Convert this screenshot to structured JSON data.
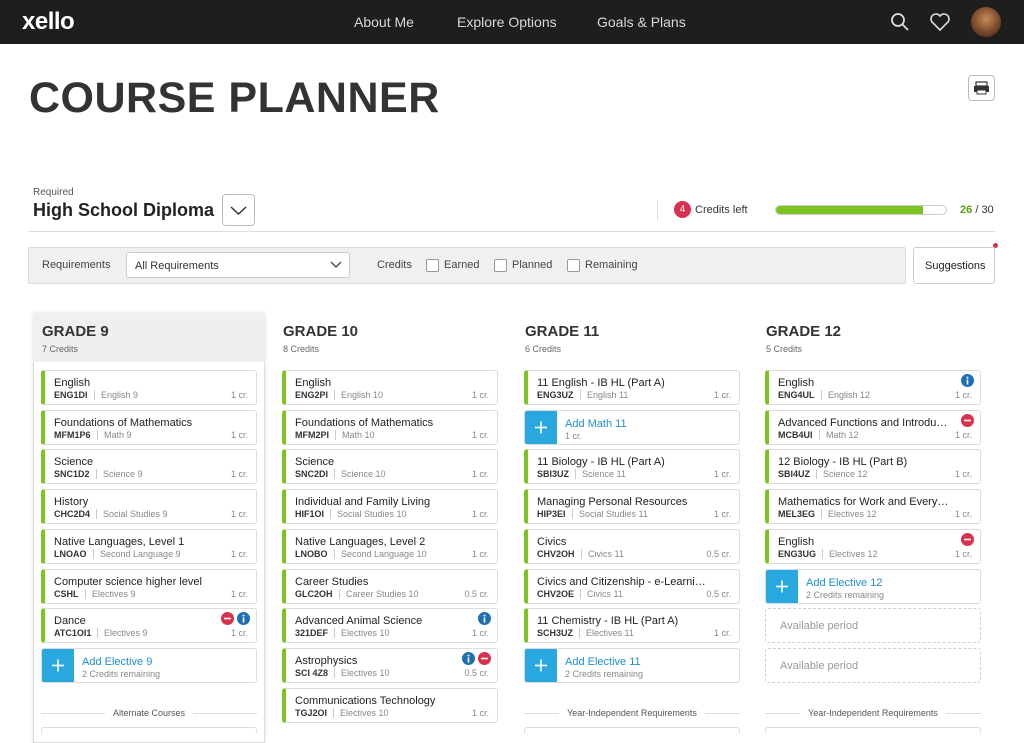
{
  "nav": {
    "logo": "xello",
    "links": [
      "About Me",
      "Explore Options",
      "Goals & Plans"
    ]
  },
  "header": {
    "title": "COURSE PLANNER"
  },
  "diploma": {
    "label": "Required",
    "name": "High School Diploma",
    "credits_left": 4,
    "credits_left_label": "Credits left",
    "progress": {
      "earned": 26,
      "separator": "/",
      "total": 30
    }
  },
  "filters": {
    "requirements_label": "Requirements",
    "requirements_value": "All Requirements",
    "credits_label": "Credits",
    "checkboxes": [
      "Earned",
      "Planned",
      "Remaining"
    ],
    "suggestions": "Suggestions"
  },
  "grades": [
    {
      "title": "GRADE 9",
      "credits": "7 Credits",
      "selected": true,
      "footer": "Alternate Courses",
      "items": [
        {
          "kind": "course",
          "name": "English",
          "code": "ENG1DI",
          "subject": "English 9",
          "credits": "1 cr."
        },
        {
          "kind": "course",
          "name": "Foundations of Mathematics",
          "code": "MFM1P6",
          "subject": "Math 9",
          "credits": "1 cr."
        },
        {
          "kind": "course",
          "name": "Science",
          "code": "SNC1D2",
          "subject": "Science 9",
          "credits": "1 cr."
        },
        {
          "kind": "course",
          "name": "History",
          "code": "CHC2D4",
          "subject": "Social Studies 9",
          "credits": "1 cr."
        },
        {
          "kind": "course",
          "name": "Native Languages, Level 1",
          "code": "LNOAO",
          "subject": "Second Language 9",
          "credits": "1 cr."
        },
        {
          "kind": "course",
          "name": "Computer science higher level",
          "code": "CSHL",
          "subject": "Electives 9",
          "credits": "1 cr."
        },
        {
          "kind": "course",
          "name": "Dance",
          "code": "ATC1OI1",
          "subject": "Electives 9",
          "credits": "1 cr.",
          "icons": [
            "remove",
            "info"
          ]
        },
        {
          "kind": "add",
          "name": "Add Elective 9",
          "note": "2 Credits remaining"
        }
      ]
    },
    {
      "title": "GRADE 10",
      "credits": "8 Credits",
      "selected": false,
      "items": [
        {
          "kind": "course",
          "name": "English",
          "code": "ENG2PI",
          "subject": "English 10",
          "credits": "1 cr."
        },
        {
          "kind": "course",
          "name": "Foundations of Mathematics",
          "code": "MFM2PI",
          "subject": "Math 10",
          "credits": "1 cr."
        },
        {
          "kind": "course",
          "name": "Science",
          "code": "SNC2DI",
          "subject": "Science 10",
          "credits": "1 cr."
        },
        {
          "kind": "course",
          "name": "Individual and Family Living",
          "code": "HIF1OI",
          "subject": "Social Studies 10",
          "credits": "1 cr."
        },
        {
          "kind": "course",
          "name": "Native Languages, Level 2",
          "code": "LNOBO",
          "subject": "Second Language 10",
          "credits": "1 cr."
        },
        {
          "kind": "course",
          "name": "Career Studies",
          "code": "GLC2OH",
          "subject": "Career Studies 10",
          "credits": "0.5 cr."
        },
        {
          "kind": "course",
          "name": "Advanced Animal Science",
          "code": "321DEF",
          "subject": "Electives 10",
          "credits": "1 cr.",
          "icons": [
            "info"
          ]
        },
        {
          "kind": "course",
          "name": "Astrophysics",
          "code": "SCI 4Z8",
          "subject": "Electives 10",
          "credits": "0.5 cr.",
          "icons": [
            "info",
            "remove"
          ]
        },
        {
          "kind": "course",
          "name": "Communications Technology",
          "code": "TGJ2OI",
          "subject": "Electives 10",
          "credits": "1 cr."
        }
      ]
    },
    {
      "title": "GRADE 11",
      "credits": "6 Credits",
      "selected": false,
      "footer": "Year-Independent Requirements",
      "items": [
        {
          "kind": "course",
          "name": "11 English - IB HL (Part A)",
          "code": "ENG3UZ",
          "subject": "English 11",
          "credits": "1 cr."
        },
        {
          "kind": "add",
          "name": "Add Math 11",
          "note": "1 cr."
        },
        {
          "kind": "course",
          "name": "11 Biology - IB HL (Part A)",
          "code": "SBI3UZ",
          "subject": "Science 11",
          "credits": "1 cr."
        },
        {
          "kind": "course",
          "name": "Managing Personal Resources",
          "code": "HIP3EI",
          "subject": "Social Studies 11",
          "credits": "1 cr."
        },
        {
          "kind": "course",
          "name": "Civics",
          "code": "CHV2OH",
          "subject": "Civics 11",
          "credits": "0.5 cr."
        },
        {
          "kind": "course",
          "name": "Civics and Citizenship - e-Learni…",
          "code": "CHV2OE",
          "subject": "Civics 11",
          "credits": "0.5 cr."
        },
        {
          "kind": "course",
          "name": "11 Chemistry - IB HL (Part A)",
          "code": "SCH3UZ",
          "subject": "Electives 11",
          "credits": "1 cr."
        },
        {
          "kind": "add",
          "name": "Add Elective 11",
          "note": "2 Credits remaining"
        }
      ]
    },
    {
      "title": "GRADE 12",
      "credits": "5 Credits",
      "selected": false,
      "footer": "Year-Independent Requirements",
      "items": [
        {
          "kind": "course",
          "name": "English",
          "code": "ENG4UL",
          "subject": "English 12",
          "credits": "1 cr.",
          "icons": [
            "info"
          ]
        },
        {
          "kind": "course",
          "name": "Advanced Functions and Introdu…",
          "code": "MCB4UI",
          "subject": "Math 12",
          "credits": "1 cr.",
          "icons": [
            "remove"
          ]
        },
        {
          "kind": "course",
          "name": "12 Biology - IB HL (Part B)",
          "code": "SBI4UZ",
          "subject": "Science 12",
          "credits": "1 cr."
        },
        {
          "kind": "course",
          "name": "Mathematics for Work and Every…",
          "code": "MEL3EG",
          "subject": "Electives 12",
          "credits": "1 cr."
        },
        {
          "kind": "course",
          "name": "English",
          "code": "ENG3UG",
          "subject": "Electives 12",
          "credits": "1 cr.",
          "icons": [
            "remove"
          ]
        },
        {
          "kind": "add",
          "name": "Add Elective 12",
          "note": "2 Credits remaining"
        },
        {
          "kind": "empty",
          "name": "Available period"
        },
        {
          "kind": "empty",
          "name": "Available period"
        }
      ]
    }
  ]
}
